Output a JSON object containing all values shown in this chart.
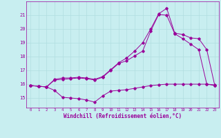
{
  "xlabel": "Windchill (Refroidissement éolien,°C)",
  "bg_color": "#c8eef0",
  "line_color": "#990099",
  "grid_color": "#b0dde0",
  "x_ticks": [
    0,
    1,
    2,
    3,
    4,
    5,
    6,
    7,
    8,
    9,
    10,
    11,
    12,
    13,
    14,
    15,
    16,
    17,
    18,
    19,
    20,
    21,
    22,
    23
  ],
  "y_ticks": [
    15,
    16,
    17,
    18,
    19,
    20,
    21
  ],
  "xlim": [
    -0.5,
    23.5
  ],
  "ylim": [
    14.3,
    22.0
  ],
  "series1_x": [
    0,
    1,
    2,
    3,
    4,
    5,
    6,
    7,
    8,
    9,
    10,
    11,
    12,
    13,
    14,
    15,
    16,
    17,
    18,
    19,
    20,
    21,
    22,
    23
  ],
  "series1_y": [
    15.9,
    15.85,
    15.8,
    15.55,
    15.05,
    15.0,
    14.95,
    14.85,
    14.7,
    15.15,
    15.5,
    15.55,
    15.6,
    15.7,
    15.8,
    15.9,
    15.95,
    16.0,
    16.0,
    16.0,
    16.0,
    16.0,
    16.0,
    15.95
  ],
  "series2_x": [
    0,
    1,
    2,
    3,
    4,
    5,
    6,
    7,
    8,
    9,
    10,
    11,
    12,
    13,
    14,
    15,
    16,
    17,
    18,
    19,
    20,
    21,
    22,
    23
  ],
  "series2_y": [
    15.9,
    15.85,
    15.8,
    16.3,
    16.35,
    16.4,
    16.45,
    16.4,
    16.3,
    16.5,
    17.0,
    17.5,
    17.7,
    18.05,
    18.4,
    19.85,
    21.05,
    21.0,
    19.65,
    19.3,
    18.9,
    18.5,
    16.0,
    15.9
  ],
  "series3_x": [
    0,
    1,
    2,
    3,
    4,
    5,
    6,
    7,
    8,
    9,
    10,
    11,
    12,
    13,
    14,
    15,
    16,
    17,
    18,
    19,
    20,
    21,
    22,
    23
  ],
  "series3_y": [
    15.9,
    15.85,
    15.8,
    16.35,
    16.45,
    16.45,
    16.5,
    16.45,
    16.35,
    16.55,
    17.05,
    17.55,
    17.9,
    18.4,
    19.0,
    20.0,
    21.1,
    21.5,
    19.7,
    19.6,
    19.35,
    19.3,
    18.5,
    15.9
  ]
}
